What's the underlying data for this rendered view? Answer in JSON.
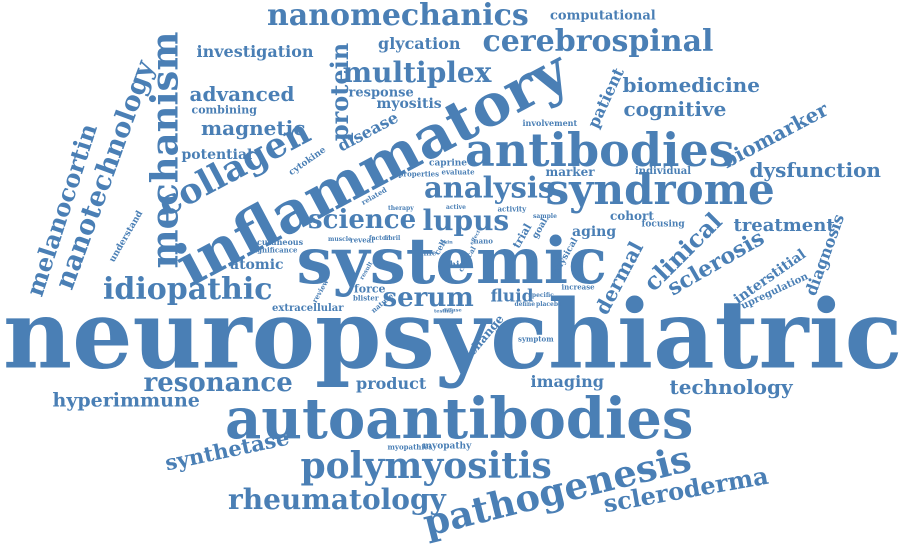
{
  "color": "#4a7fb5",
  "words": {
    "neuropsychiatric": "neuropsychiatric",
    "systemic": "systemic",
    "inflammatory": "inflammatory",
    "autoantibodies": "autoantibodies",
    "antibodies": "antibodies",
    "syndrome": "syndrome",
    "polymyositis": "polymyositis",
    "pathogenesis": "pathogenesis",
    "mechanism": "mechanism",
    "collagen": "collagen",
    "idiopathic": "idiopathic",
    "nanotechnology": "nanotechnology",
    "melanocortin": "melanocortin",
    "nanomechanics": "nanomechanics",
    "cerebrospinal": "cerebrospinal",
    "multiplex": "multiplex",
    "protein": "protein",
    "analysis": "analysis",
    "science": "science",
    "lupus": "lupus",
    "serum": "serum",
    "resonance": "resonance",
    "rheumatology": "rheumatology",
    "scleroderma": "scleroderma",
    "synthetase": "synthetase",
    "hyperimmune": "hyperimmune",
    "technology": "technology",
    "imaging": "imaging",
    "product": "product",
    "sclerosis": "sclerosis",
    "clinical": "clinical",
    "dermal": "dermal",
    "treatment": "treatment",
    "biomedicine": "biomedicine",
    "cognitive": "cognitive",
    "biomarker": "biomarker",
    "dysfunction": "dysfunction",
    "diagnosis": "diagnosis",
    "interstitial": "interstitial",
    "upregulation": "upregulation",
    "advanced": "advanced",
    "magnetic": "magnetic",
    "potential": "potential",
    "investigation": "investigation",
    "glycation": "glycation",
    "computational": "computational",
    "patient": "patient",
    "myositis": "myositis",
    "response": "response",
    "disease": "disease",
    "combining": "combining",
    "atomic": "atomic",
    "extracellular": "extracellular",
    "fluid": "fluid",
    "force": "force",
    "aging": "aging",
    "cohort": "cohort",
    "focusing": "focusing",
    "marker": "marker",
    "individual": "individual",
    "involvement": "involvement",
    "caprine": "caprine",
    "evaluate": "evaluate",
    "properties": "properties",
    "cytokine": "cytokine",
    "understand": "understand",
    "cutaneous": "cutaneous",
    "significance": "significance",
    "reveal": "reveal",
    "factor": "factor",
    "fibril": "fibril",
    "muscle": "muscle",
    "active": "active",
    "activity": "activity",
    "related": "related",
    "trial": "trial",
    "goal": "goal",
    "sample": "sample",
    "nano": "nano",
    "skin": "skin",
    "cell": "cell",
    "life": "life",
    "hic": "hic",
    "physical": "physical",
    "increase": "increase",
    "specific": "specific",
    "blister": "blister",
    "nature": "nature",
    "review": "review",
    "result": "result",
    "testing": "testing",
    "define": "define",
    "placebo": "placebo",
    "change": "change",
    "symptom": "symptom",
    "myopathies": "myopathies",
    "myopathy": "myopathy",
    "therapy": "therapy",
    "critical": "critical",
    "effect": "effect",
    "diffuse": "diffuse"
  }
}
